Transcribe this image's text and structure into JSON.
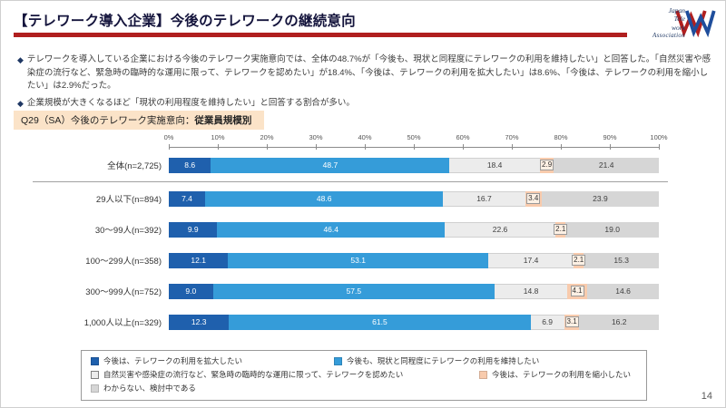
{
  "page": {
    "title": "【テレワーク導入企業】今後のテレワークの継続意向",
    "page_number": "14"
  },
  "logo": {
    "line1": "Japan",
    "line2": "Tele",
    "line3": "work",
    "line4": "Association"
  },
  "bullets": {
    "marker": "◆",
    "items": [
      "テレワークを導入している企業における今後のテレワーク実施意向では、全体の48.7%が「今後も、現状と同程度にテレワークの利用を維持したい」と回答した。「自然災害や感染症の流行など、緊急時の臨時的な運用に限って、テレワークを認めたい」が18.4%、「今後は、テレワークの利用を拡大したい」は8.6%、「今後は、テレワークの利用を縮小したい」は2.9%だった。",
      "企業規模が大きくなるほど「現状の利用程度を維持したい」と回答する割合が多い。"
    ]
  },
  "question_label": {
    "prefix": "Q29（SA）今後のテレワーク実施意向：",
    "bold": "従業員規模別"
  },
  "chart_data": {
    "type": "bar",
    "stacked": true,
    "orientation": "horizontal",
    "x_axis": {
      "min": 0,
      "max": 100,
      "ticks": [
        "0%",
        "10%",
        "20%",
        "30%",
        "40%",
        "50%",
        "60%",
        "70%",
        "80%",
        "90%",
        "100%"
      ]
    },
    "categories": [
      "全体(n=2,725)",
      "29人以下(n=894)",
      "30～99人(n=392)",
      "100～299人(n=358)",
      "300～999人(n=752)",
      "1,000人以上(n=329)"
    ],
    "series": [
      {
        "name": "今後は、テレワークの利用を拡大したい",
        "color": "#1f60ad",
        "values": [
          8.6,
          7.4,
          9.9,
          12.1,
          9.0,
          12.3
        ]
      },
      {
        "name": "今後も、現状と同程度にテレワークの利用を維持したい",
        "color": "#359cd9",
        "values": [
          48.7,
          48.6,
          46.4,
          53.1,
          57.5,
          61.5
        ]
      },
      {
        "name": "自然災害や感染症の流行など、緊急時の臨時的な運用に限って、テレワークを認めたい",
        "color": "#ececec",
        "values": [
          18.4,
          16.7,
          22.6,
          17.4,
          14.8,
          6.9
        ]
      },
      {
        "name": "今後は、テレワークの利用を縮小したい",
        "color": "#f8cbad",
        "values": [
          2.9,
          3.4,
          2.1,
          2.1,
          4.1,
          3.1
        ]
      },
      {
        "name": "わからない、検討中である",
        "color": "#d6d6d6",
        "values": [
          21.4,
          23.9,
          19.0,
          15.3,
          14.6,
          16.2
        ]
      }
    ],
    "separator_after_first_category": true,
    "legend_position": "bottom"
  }
}
